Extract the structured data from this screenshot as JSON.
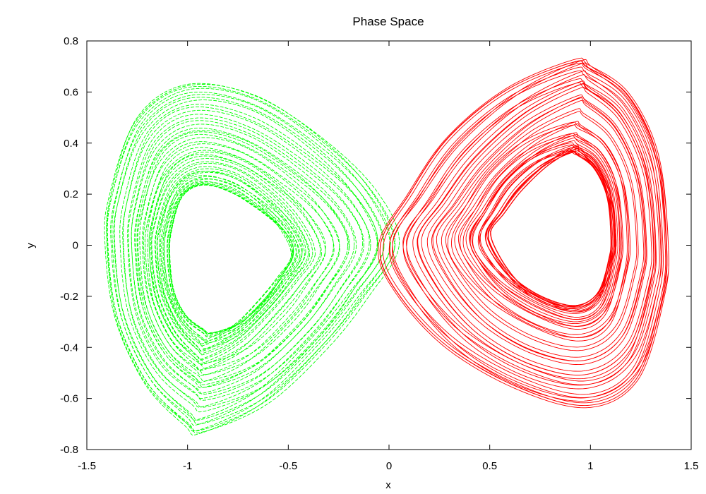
{
  "chart_data": {
    "type": "line",
    "title": "Phase Space",
    "xlabel": "x",
    "ylabel": "y",
    "xlim": [
      -1.5,
      1.5
    ],
    "ylim": [
      -0.8,
      0.8
    ],
    "xticks": [
      -1.5,
      -1,
      -0.5,
      0,
      0.5,
      1,
      1.5
    ],
    "xtick_labels": [
      "-1.5",
      "-1",
      "-0.5",
      "0",
      "0.5",
      "1",
      "1.5"
    ],
    "yticks": [
      -0.8,
      -0.6,
      -0.4,
      -0.2,
      0,
      0.2,
      0.4,
      0.6,
      0.8
    ],
    "ytick_labels": [
      "-0.8",
      "-0.6",
      "-0.4",
      "-0.2",
      "0",
      "0.2",
      "0.4",
      "0.6",
      "0.8"
    ],
    "grid": false,
    "legend": "none",
    "series": [
      {
        "color": "#00ff00",
        "dashed": true,
        "points": [
          [
            0.05,
            0.0
          ],
          [
            -0.05,
            0.2
          ],
          [
            -0.3,
            0.4
          ],
          [
            -0.65,
            0.58
          ],
          [
            -1.0,
            0.63
          ],
          [
            -1.25,
            0.5
          ],
          [
            -1.38,
            0.2
          ],
          [
            -1.4,
            0.0
          ],
          [
            -1.35,
            -0.3
          ],
          [
            -1.2,
            -0.55
          ],
          [
            -1.0,
            -0.7
          ],
          [
            -0.92,
            -0.73
          ],
          [
            -0.6,
            -0.62
          ],
          [
            -0.3,
            -0.4
          ],
          [
            -0.1,
            -0.2
          ],
          [
            0.05,
            0.0
          ]
        ]
      },
      {
        "color": "#ff0000",
        "dashed": false,
        "points": [
          [
            -0.05,
            0.0
          ],
          [
            0.05,
            -0.2
          ],
          [
            0.3,
            -0.42
          ],
          [
            0.65,
            -0.58
          ],
          [
            1.0,
            -0.64
          ],
          [
            1.25,
            -0.52
          ],
          [
            1.38,
            -0.2
          ],
          [
            1.4,
            0.0
          ],
          [
            1.35,
            0.35
          ],
          [
            1.2,
            0.6
          ],
          [
            1.0,
            0.72
          ],
          [
            0.93,
            0.74
          ],
          [
            0.6,
            0.62
          ],
          [
            0.3,
            0.42
          ],
          [
            0.1,
            0.2
          ],
          [
            -0.05,
            0.0
          ]
        ]
      }
    ]
  }
}
